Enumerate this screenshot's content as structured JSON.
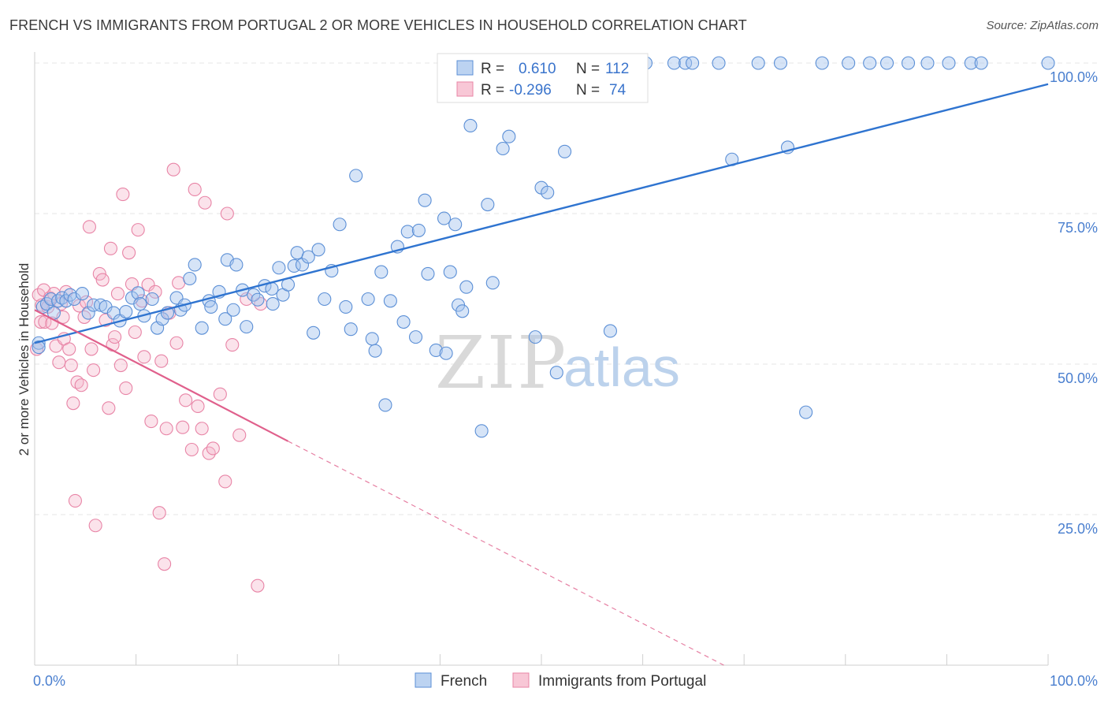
{
  "title": "FRENCH VS IMMIGRANTS FROM PORTUGAL 2 OR MORE VEHICLES IN HOUSEHOLD CORRELATION CHART",
  "source": "Source: ZipAtlas.com",
  "watermark": {
    "zip": "ZIP",
    "atlas": "atlas"
  },
  "colors": {
    "french": "#5b8fd6",
    "french_line": "#2f74d0",
    "portugal": "#e884a6",
    "portugal_line": "#e0608c",
    "tick": "#4a7fcf"
  },
  "chart_data": {
    "type": "scatter",
    "title": "FRENCH VS IMMIGRANTS FROM PORTUGAL 2 OR MORE VEHICLES IN HOUSEHOLD CORRELATION CHART",
    "xlabel": "",
    "ylabel": "2 or more Vehicles in Household",
    "xlim": [
      0,
      100
    ],
    "ylim": [
      0,
      100
    ],
    "x_tick_labels": [
      "0.0%",
      "100.0%"
    ],
    "y_ticks": [
      25,
      50,
      75,
      100
    ],
    "y_tick_labels": [
      "25.0%",
      "50.0%",
      "75.0%",
      "100.0%"
    ],
    "grid": true,
    "legend_position": "bottom-center",
    "stats": [
      {
        "r_label": "R =",
        "r_value": "0.610",
        "n_label": "N =",
        "n_value": "112"
      },
      {
        "r_label": "R =",
        "r_value": "-0.296",
        "n_label": "N =",
        "n_value": "74"
      }
    ],
    "series": [
      {
        "name": "French",
        "trend": {
          "x": [
            0,
            100
          ],
          "y": [
            53.5,
            96.5
          ],
          "dashed_to": null
        },
        "points": [
          [
            0.4,
            53.5
          ],
          [
            0.4,
            52.8
          ],
          [
            0.8,
            59.5
          ],
          [
            1.2,
            60
          ],
          [
            1.6,
            60.8
          ],
          [
            1.9,
            58.5
          ],
          [
            2.3,
            60.5
          ],
          [
            2.7,
            61
          ],
          [
            3.1,
            60.5
          ],
          [
            3.5,
            61.5
          ],
          [
            3.9,
            60.8
          ],
          [
            4.7,
            61.7
          ],
          [
            5.3,
            58.5
          ],
          [
            5.8,
            59.8
          ],
          [
            6.5,
            59.8
          ],
          [
            7.0,
            59.5
          ],
          [
            7.8,
            58.5
          ],
          [
            8.4,
            57.2
          ],
          [
            9.0,
            58.7
          ],
          [
            9.6,
            61
          ],
          [
            10.2,
            61.8
          ],
          [
            10.4,
            60
          ],
          [
            10.8,
            58
          ],
          [
            11.6,
            60.8
          ],
          [
            12.1,
            56
          ],
          [
            12.6,
            57.5
          ],
          [
            13.1,
            58.5
          ],
          [
            14.0,
            61
          ],
          [
            14.4,
            59
          ],
          [
            14.8,
            59.8
          ],
          [
            15.3,
            64.2
          ],
          [
            15.8,
            66.5
          ],
          [
            16.5,
            56
          ],
          [
            17.2,
            60.5
          ],
          [
            17.4,
            59.5
          ],
          [
            18.2,
            62
          ],
          [
            18.8,
            57.5
          ],
          [
            19.0,
            67.3
          ],
          [
            19.6,
            59
          ],
          [
            19.9,
            66.5
          ],
          [
            20.5,
            62.3
          ],
          [
            20.9,
            56.2
          ],
          [
            21.6,
            61.5
          ],
          [
            22.0,
            60.7
          ],
          [
            22.7,
            63
          ],
          [
            23.4,
            62.5
          ],
          [
            23.5,
            60
          ],
          [
            24.1,
            66
          ],
          [
            24.5,
            61.5
          ],
          [
            25.0,
            63.2
          ],
          [
            25.6,
            66.3
          ],
          [
            25.9,
            68.5
          ],
          [
            26.4,
            66.5
          ],
          [
            27.0,
            67.8
          ],
          [
            27.5,
            55.2
          ],
          [
            28.0,
            69
          ],
          [
            28.6,
            60.8
          ],
          [
            29.3,
            65.5
          ],
          [
            30.1,
            73.2
          ],
          [
            30.7,
            59.5
          ],
          [
            31.2,
            55.8
          ],
          [
            31.7,
            81.3
          ],
          [
            32.9,
            60.8
          ],
          [
            33.3,
            54.2
          ],
          [
            33.6,
            52.2
          ],
          [
            34.2,
            65.3
          ],
          [
            34.6,
            43.2
          ],
          [
            35.1,
            60.5
          ],
          [
            35.8,
            69.5
          ],
          [
            36.4,
            57
          ],
          [
            36.8,
            72
          ],
          [
            37.6,
            54.5
          ],
          [
            37.9,
            72.2
          ],
          [
            38.5,
            77.2
          ],
          [
            38.8,
            65
          ],
          [
            39.6,
            52.3
          ],
          [
            40.4,
            74.2
          ],
          [
            40.6,
            51.8
          ],
          [
            41.0,
            65.3
          ],
          [
            41.5,
            73.2
          ],
          [
            41.8,
            59.8
          ],
          [
            42.2,
            58.8
          ],
          [
            42.6,
            62.8
          ],
          [
            43.0,
            89.6
          ],
          [
            44.1,
            38.9
          ],
          [
            44.7,
            76.5
          ],
          [
            45.2,
            63.5
          ],
          [
            46.2,
            85.8
          ],
          [
            46.8,
            87.8
          ],
          [
            47.4,
            100
          ],
          [
            49.4,
            54.5
          ],
          [
            50.0,
            79.3
          ],
          [
            50.6,
            78.5
          ],
          [
            51.5,
            48.6
          ],
          [
            52.0,
            100
          ],
          [
            52.3,
            85.3
          ],
          [
            53.1,
            100
          ],
          [
            55.5,
            100
          ],
          [
            56.0,
            100
          ],
          [
            56.5,
            100
          ],
          [
            56.8,
            55.5
          ],
          [
            59.6,
            100
          ],
          [
            60.3,
            100
          ],
          [
            63.1,
            100
          ],
          [
            64.2,
            100
          ],
          [
            64.9,
            100
          ],
          [
            67.5,
            100
          ],
          [
            68.8,
            84
          ],
          [
            71.4,
            100
          ],
          [
            73.6,
            100
          ],
          [
            74.3,
            86
          ],
          [
            76.1,
            42
          ],
          [
            77.7,
            100
          ],
          [
            80.3,
            100
          ],
          [
            82.4,
            100
          ],
          [
            84.1,
            100
          ],
          [
            86.2,
            100
          ],
          [
            88.1,
            100
          ],
          [
            90.2,
            100
          ],
          [
            92.4,
            100
          ],
          [
            93.4,
            100
          ],
          [
            100,
            100
          ]
        ]
      },
      {
        "name": "Immigrants from Portugal",
        "trend": {
          "x": [
            0,
            25
          ],
          "y": [
            59,
            37.2
          ],
          "dashed_to": [
            68,
            0
          ]
        },
        "points": [
          [
            0.2,
            52.5
          ],
          [
            0.4,
            61.5
          ],
          [
            0.6,
            57
          ],
          [
            0.7,
            59.8
          ],
          [
            0.9,
            62.3
          ],
          [
            1.0,
            57
          ],
          [
            1.3,
            59.5
          ],
          [
            1.5,
            61
          ],
          [
            1.7,
            56.8
          ],
          [
            1.9,
            61.7
          ],
          [
            2.1,
            53
          ],
          [
            2.4,
            50.3
          ],
          [
            2.6,
            60
          ],
          [
            2.8,
            57.8
          ],
          [
            2.9,
            54.2
          ],
          [
            3.1,
            62
          ],
          [
            3.4,
            52.5
          ],
          [
            3.6,
            49.8
          ],
          [
            3.8,
            43.5
          ],
          [
            4.0,
            27.3
          ],
          [
            4.2,
            47
          ],
          [
            4.4,
            59.7
          ],
          [
            4.6,
            46.5
          ],
          [
            4.9,
            57.8
          ],
          [
            5.1,
            60.3
          ],
          [
            5.4,
            72.8
          ],
          [
            5.6,
            52.5
          ],
          [
            5.8,
            49
          ],
          [
            6.0,
            23.2
          ],
          [
            6.4,
            65
          ],
          [
            6.7,
            64
          ],
          [
            7.0,
            57.3
          ],
          [
            7.3,
            42.7
          ],
          [
            7.5,
            69.2
          ],
          [
            7.7,
            53.2
          ],
          [
            7.9,
            54.5
          ],
          [
            8.2,
            61.7
          ],
          [
            8.5,
            49.8
          ],
          [
            8.7,
            78.2
          ],
          [
            9.0,
            46
          ],
          [
            9.3,
            68.5
          ],
          [
            9.6,
            63.3
          ],
          [
            9.9,
            55.3
          ],
          [
            10.2,
            72.3
          ],
          [
            10.6,
            60.5
          ],
          [
            10.8,
            51.2
          ],
          [
            11.2,
            63.2
          ],
          [
            11.5,
            40.5
          ],
          [
            11.9,
            62
          ],
          [
            12.3,
            25.3
          ],
          [
            12.5,
            50.5
          ],
          [
            12.8,
            16.8
          ],
          [
            13.0,
            39.3
          ],
          [
            13.3,
            58.5
          ],
          [
            13.7,
            82.3
          ],
          [
            14.0,
            53.5
          ],
          [
            14.2,
            63.5
          ],
          [
            14.6,
            39.5
          ],
          [
            14.9,
            44
          ],
          [
            15.5,
            35.8
          ],
          [
            15.8,
            79
          ],
          [
            16.1,
            43
          ],
          [
            16.5,
            39.3
          ],
          [
            16.8,
            76.8
          ],
          [
            17.2,
            35.2
          ],
          [
            17.6,
            36
          ],
          [
            18.3,
            45
          ],
          [
            18.8,
            30.5
          ],
          [
            19.0,
            75
          ],
          [
            19.5,
            53.2
          ],
          [
            20.2,
            38.2
          ],
          [
            20.9,
            60.8
          ],
          [
            22.0,
            13.2
          ],
          [
            22.3,
            60
          ]
        ]
      }
    ]
  }
}
